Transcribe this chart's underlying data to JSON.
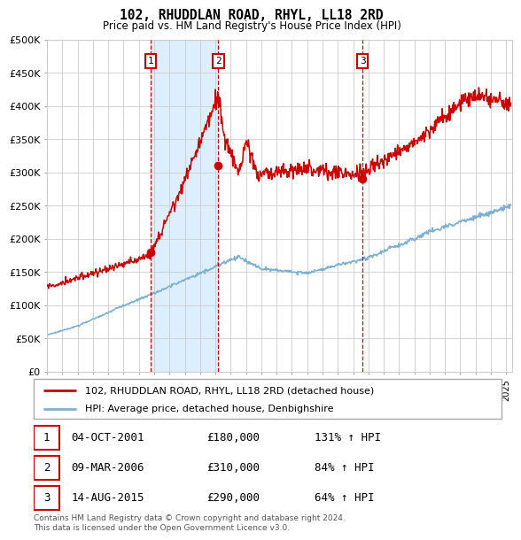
{
  "title": "102, RHUDDLAN ROAD, RHYL, LL18 2RD",
  "subtitle": "Price paid vs. HM Land Registry's House Price Index (HPI)",
  "ylim": [
    0,
    500000
  ],
  "yticks": [
    0,
    50000,
    100000,
    150000,
    200000,
    250000,
    300000,
    350000,
    400000,
    450000,
    500000
  ],
  "ytick_labels": [
    "£0",
    "£50K",
    "£100K",
    "£150K",
    "£200K",
    "£250K",
    "£300K",
    "£350K",
    "£400K",
    "£450K",
    "£500K"
  ],
  "sale_color": "#cc0000",
  "hpi_color": "#7bafd4",
  "vline_color": "#cc0000",
  "shade_color": "#ddeeff",
  "grid_color": "#cccccc",
  "background_color": "#ffffff",
  "sales": [
    {
      "date": 2001.75,
      "price": 180000,
      "label": "1"
    },
    {
      "date": 2006.19,
      "price": 310000,
      "label": "2"
    },
    {
      "date": 2015.62,
      "price": 290000,
      "label": "3"
    }
  ],
  "legend_entries": [
    {
      "label": "102, RHUDDLAN ROAD, RHYL, LL18 2RD (detached house)",
      "color": "#cc0000"
    },
    {
      "label": "HPI: Average price, detached house, Denbighshire",
      "color": "#7bafd4"
    }
  ],
  "table_rows": [
    {
      "num": "1",
      "date": "04-OCT-2001",
      "price": "£180,000",
      "hpi": "131% ↑ HPI"
    },
    {
      "num": "2",
      "date": "09-MAR-2006",
      "price": "£310,000",
      "hpi": "84% ↑ HPI"
    },
    {
      "num": "3",
      "date": "14-AUG-2015",
      "price": "£290,000",
      "hpi": "64% ↑ HPI"
    }
  ],
  "footnote": "Contains HM Land Registry data © Crown copyright and database right 2024.\nThis data is licensed under the Open Government Licence v3.0."
}
